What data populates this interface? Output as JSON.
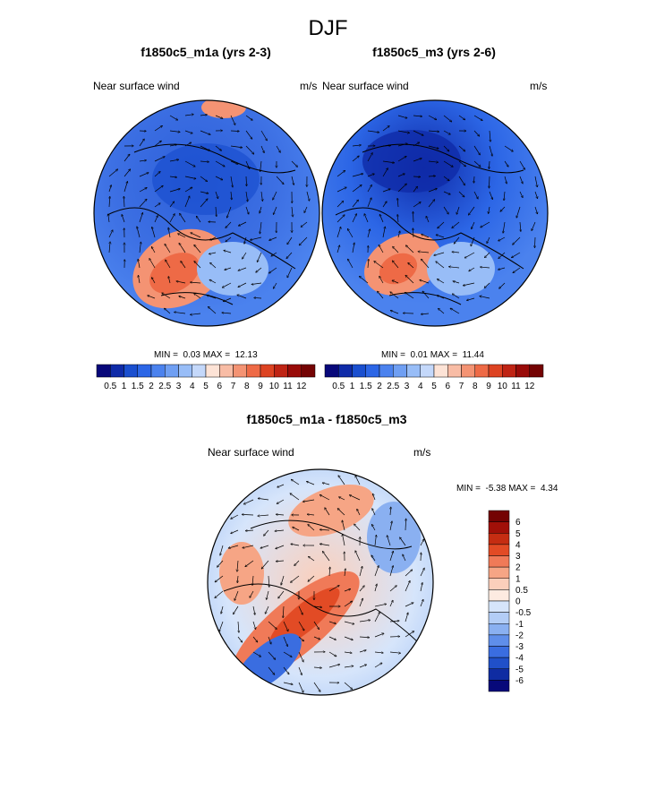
{
  "title": "DJF",
  "panels": [
    {
      "title": "f1850c5_m1a (yrs 2-3)",
      "var_label": "Near surface wind",
      "units": "m/s",
      "stats": {
        "min_label": "MIN =",
        "min": "0.03",
        "max_label": "MAX =",
        "max": "12.13"
      },
      "colorbar_labels": [
        "0.5",
        "1",
        "1.5",
        "2",
        "2.5",
        "3",
        "4",
        "5",
        "6",
        "7",
        "8",
        "9",
        "10",
        "11",
        "12"
      ]
    },
    {
      "title": "f1850c5_m3 (yrs 2-6)",
      "var_label": "Near surface wind",
      "units": "m/s",
      "stats": {
        "min_label": "MIN =",
        "min": "0.01",
        "max_label": "MAX =",
        "max": "11.44"
      },
      "colorbar_labels": [
        "0.5",
        "1",
        "1.5",
        "2",
        "2.5",
        "3",
        "4",
        "5",
        "6",
        "7",
        "8",
        "9",
        "10",
        "11",
        "12"
      ]
    },
    {
      "title": "f1850c5_m1a - f1850c5_m3",
      "var_label": "Near surface wind",
      "units": "m/s",
      "stats": {
        "min_label": "MIN =",
        "min": "-5.38",
        "max_label": "MAX =",
        "max": "4.34"
      },
      "colorbar_labels": [
        "6",
        "5",
        "4",
        "3",
        "2",
        "1",
        "0.5",
        "0",
        "-0.5",
        "-1",
        "-2",
        "-3",
        "-4",
        "-5",
        "-6"
      ]
    }
  ],
  "colors": {
    "abs_scale": [
      "#08087a",
      "#0f2ba8",
      "#1a4fcf",
      "#2c66e6",
      "#4b82ee",
      "#6f9ff3",
      "#98bdf7",
      "#c4d8fa",
      "#fde3d6",
      "#f8bca5",
      "#f49373",
      "#ee6a46",
      "#dd4322",
      "#bf2414",
      "#990b08",
      "#740303"
    ],
    "diff_scale": [
      "#740303",
      "#a11008",
      "#c52d12",
      "#e24b25",
      "#f07a58",
      "#f6a585",
      "#fbcfbb",
      "#fdebe1",
      "#d6e5fb",
      "#b3cdf6",
      "#8ab0f1",
      "#5f8eea",
      "#3a6de0",
      "#2050c9",
      "#0f2ca2",
      "#07097a"
    ]
  }
}
